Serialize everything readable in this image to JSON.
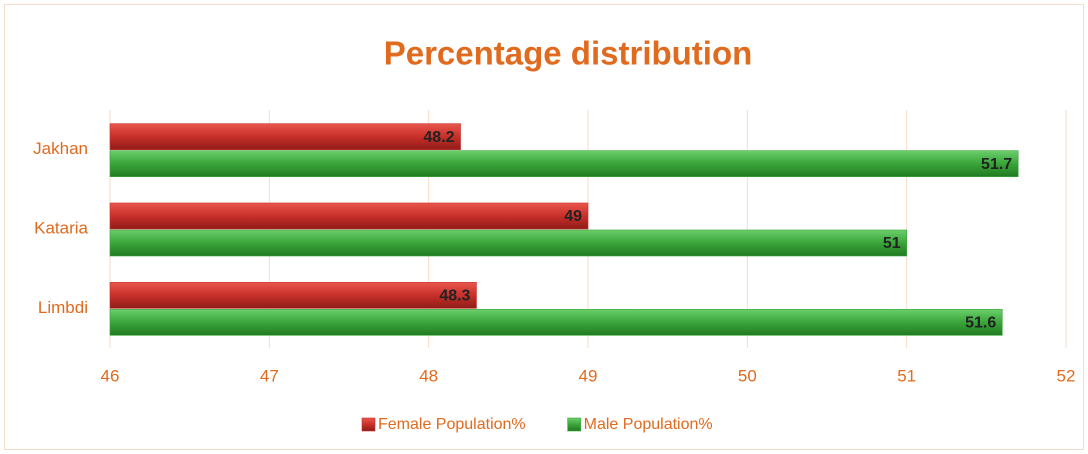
{
  "chart_data": {
    "type": "hbar",
    "title": "Percentage distribution",
    "categories": [
      "Jakhan",
      "Kataria",
      "Limbdi"
    ],
    "series": [
      {
        "name": "Female Population%",
        "color": "#c8302a",
        "values": [
          48.2,
          49,
          48.3
        ]
      },
      {
        "name": "Male Population%",
        "color": "#3aa53a",
        "values": [
          51.7,
          51,
          51.6
        ]
      }
    ],
    "xlim": [
      46,
      52
    ],
    "xticks": [
      46,
      47,
      48,
      49,
      50,
      51,
      52
    ],
    "grid": true,
    "legend": "bottom"
  }
}
